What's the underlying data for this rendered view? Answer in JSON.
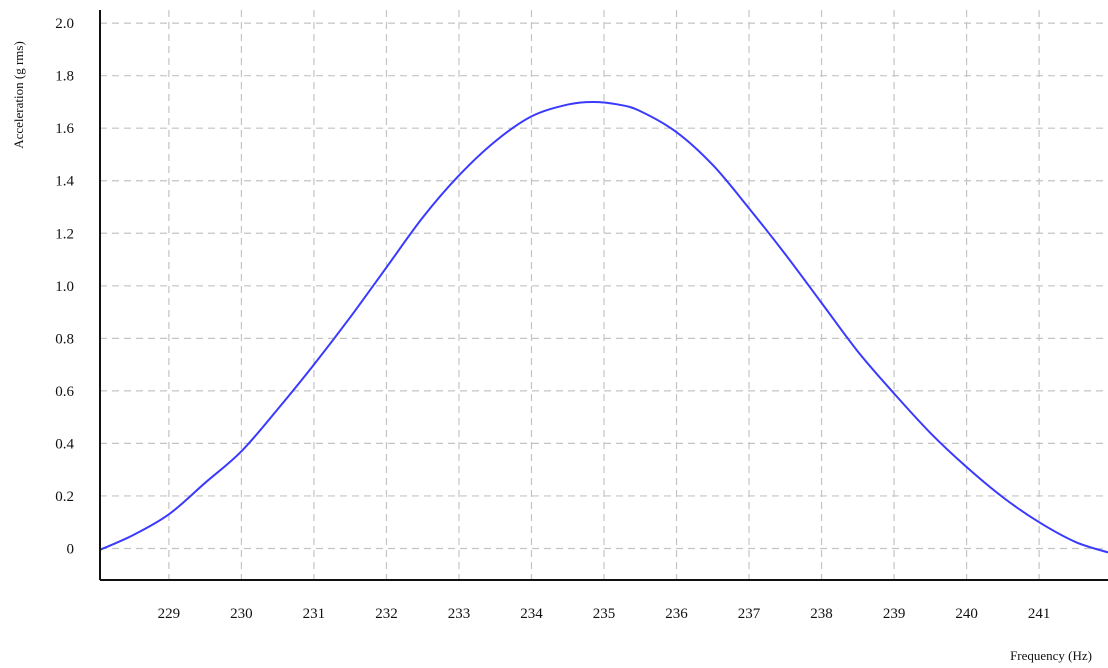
{
  "chart_data": {
    "type": "line",
    "title": "",
    "xlabel": "Frequency (Hz)",
    "ylabel": "Acceleration (g rms)",
    "xlim": [
      228.05,
      241.95
    ],
    "ylim": [
      -0.12,
      2.05
    ],
    "grid": true,
    "x_ticks": [
      {
        "value": 229,
        "label": "229"
      },
      {
        "value": 230,
        "label": "230"
      },
      {
        "value": 231,
        "label": "231"
      },
      {
        "value": 232,
        "label": "232"
      },
      {
        "value": 233,
        "label": "233"
      },
      {
        "value": 234,
        "label": "234"
      },
      {
        "value": 235,
        "label": "235"
      },
      {
        "value": 236,
        "label": "236"
      },
      {
        "value": 237,
        "label": "237"
      },
      {
        "value": 238,
        "label": "238"
      },
      {
        "value": 239,
        "label": "239"
      },
      {
        "value": 240,
        "label": "240"
      },
      {
        "value": 241,
        "label": "241"
      }
    ],
    "y_ticks": [
      {
        "value": 0,
        "label": "0"
      },
      {
        "value": 0.2,
        "label": "0.2"
      },
      {
        "value": 0.4,
        "label": "0.4"
      },
      {
        "value": 0.6,
        "label": "0.6"
      },
      {
        "value": 0.8,
        "label": "0.8"
      },
      {
        "value": 1.0,
        "label": "1.0"
      },
      {
        "value": 1.2,
        "label": "1.2"
      },
      {
        "value": 1.4,
        "label": "1.4"
      },
      {
        "value": 1.6,
        "label": "1.6"
      },
      {
        "value": 1.8,
        "label": "1.8"
      },
      {
        "value": 2.0,
        "label": "2.0"
      }
    ],
    "series": [
      {
        "color": "#3a3aff",
        "x": [
          228.05,
          228.5,
          229.0,
          229.5,
          230.0,
          230.5,
          231.0,
          231.5,
          232.0,
          232.5,
          233.0,
          233.5,
          234.0,
          234.5,
          234.85,
          235.2,
          235.5,
          236.0,
          236.5,
          237.0,
          237.5,
          238.0,
          238.5,
          239.0,
          239.5,
          240.0,
          240.5,
          241.0,
          241.5,
          241.95
        ],
        "y": [
          -0.005,
          0.05,
          0.13,
          0.25,
          0.37,
          0.53,
          0.7,
          0.88,
          1.07,
          1.26,
          1.42,
          1.55,
          1.645,
          1.69,
          1.7,
          1.69,
          1.665,
          1.585,
          1.46,
          1.295,
          1.12,
          0.935,
          0.75,
          0.59,
          0.44,
          0.31,
          0.195,
          0.1,
          0.025,
          -0.015
        ]
      }
    ]
  }
}
